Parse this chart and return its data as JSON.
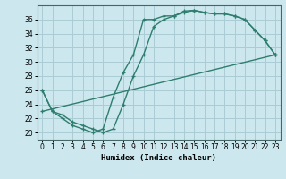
{
  "title": "",
  "xlabel": "Humidex (Indice chaleur)",
  "background_color": "#cce8ee",
  "line_color": "#2e7d6e",
  "grid_color": "#aaccd4",
  "xlim": [
    -0.5,
    23.5
  ],
  "ylim": [
    19,
    38
  ],
  "xticks": [
    0,
    1,
    2,
    3,
    4,
    5,
    6,
    7,
    8,
    9,
    10,
    11,
    12,
    13,
    14,
    15,
    16,
    17,
    18,
    19,
    20,
    21,
    22,
    23
  ],
  "yticks": [
    20,
    22,
    24,
    26,
    28,
    30,
    32,
    34,
    36
  ],
  "line1_x": [
    0,
    1,
    2,
    3,
    4,
    5,
    6,
    7,
    8,
    9,
    10,
    11,
    12,
    13,
    14,
    15,
    16,
    17,
    18,
    19,
    20,
    21,
    22,
    23
  ],
  "line1_y": [
    26,
    23,
    22,
    21,
    20.5,
    20,
    20.5,
    25,
    28.5,
    31,
    36,
    36,
    36.5,
    36.5,
    37.2,
    37.3,
    37,
    36.8,
    36.8,
    36.5,
    36,
    34.5,
    33,
    31
  ],
  "line2_x": [
    0,
    1,
    2,
    3,
    4,
    5,
    6,
    7,
    8,
    9,
    10,
    11,
    12,
    13,
    14,
    15,
    16,
    17,
    18,
    19,
    20,
    21,
    22,
    23
  ],
  "line2_y": [
    26,
    23,
    22.5,
    21.5,
    21,
    20.5,
    20,
    20.5,
    24,
    28,
    31,
    35,
    36,
    36.5,
    37,
    37.3,
    37,
    36.8,
    36.8,
    36.5,
    36,
    34.5,
    33,
    31
  ],
  "line3_x": [
    0,
    23
  ],
  "line3_y": [
    23,
    31
  ]
}
